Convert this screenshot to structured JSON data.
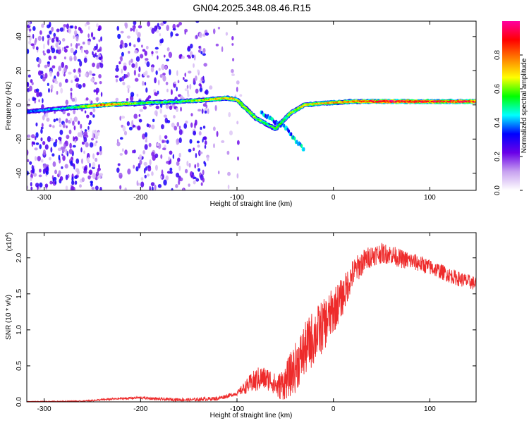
{
  "title": "GN04.2025.348.08.46.R15",
  "chart_data": [
    {
      "type": "heatmap",
      "name": "spectrogram",
      "xlabel": "Height of straight line (km)",
      "ylabel": "Frequency (Hz)",
      "xlim": [
        -318,
        148
      ],
      "ylim": [
        -50,
        49
      ],
      "xticks": [
        -300,
        -200,
        -100,
        0,
        100
      ],
      "xtick_labels": [
        "-300",
        "-200",
        "-100",
        "0",
        "100"
      ],
      "yticks": [
        -40,
        -20,
        0,
        20,
        40
      ],
      "ytick_labels": [
        "-40",
        "-20",
        "0",
        "20",
        "40"
      ],
      "colorbar": {
        "label": "Normalized spectral amplitude",
        "range": [
          0,
          1
        ],
        "ticks": [
          0,
          0.2,
          0.4,
          0.6,
          0.8
        ],
        "tick_labels": [
          "0.0",
          "0.2",
          "0.4",
          "0.6",
          "0.8"
        ],
        "colors": [
          "#ffffff",
          "#c8a2f0",
          "#6a00e8",
          "#0000ff",
          "#00ffff",
          "#00ff00",
          "#ffff00",
          "#ff8000",
          "#ff0000",
          "#ff00a0"
        ]
      },
      "main_track": [
        {
          "x": -318,
          "y": -4,
          "a": 0.4
        },
        {
          "x": -280,
          "y": -2,
          "a": 0.45
        },
        {
          "x": -240,
          "y": 0,
          "a": 0.85
        },
        {
          "x": -200,
          "y": 1,
          "a": 0.6
        },
        {
          "x": -160,
          "y": 2,
          "a": 0.55
        },
        {
          "x": -130,
          "y": 3,
          "a": 0.7
        },
        {
          "x": -110,
          "y": 4,
          "a": 0.75
        },
        {
          "x": -100,
          "y": 3,
          "a": 0.7
        },
        {
          "x": -80,
          "y": -8,
          "a": 0.6
        },
        {
          "x": -60,
          "y": -14,
          "a": 0.55
        },
        {
          "x": -45,
          "y": -5,
          "a": 0.6
        },
        {
          "x": -30,
          "y": 0,
          "a": 0.7
        },
        {
          "x": -10,
          "y": 1,
          "a": 0.75
        },
        {
          "x": 20,
          "y": 2,
          "a": 0.8
        },
        {
          "x": 60,
          "y": 2,
          "a": 0.95
        },
        {
          "x": 90,
          "y": 2,
          "a": 0.9
        },
        {
          "x": 148,
          "y": 2,
          "a": 0.9
        }
      ],
      "secondary_track": [
        {
          "x": -75,
          "y": -5
        },
        {
          "x": -60,
          "y": -10
        },
        {
          "x": -50,
          "y": -13
        },
        {
          "x": -40,
          "y": -20
        },
        {
          "x": -30,
          "y": -27
        }
      ],
      "noise_regions": [
        {
          "x0": -318,
          "x1": -240,
          "density": 1.0
        },
        {
          "x0": -225,
          "x1": -130,
          "density": 0.7
        },
        {
          "x0": -130,
          "x1": -95,
          "density": 0.15
        }
      ]
    },
    {
      "type": "line",
      "name": "snr",
      "xlabel": "Height of straight line (km)",
      "ylabel": "SNR (10 * v/v)",
      "multiplier_label": "(x10",
      "multiplier_exponent": "4",
      "multiplier_close": ")",
      "xlim": [
        -318,
        148
      ],
      "ylim": [
        0,
        2.35
      ],
      "xticks": [
        -300,
        -200,
        -100,
        0,
        100
      ],
      "xtick_labels": [
        "-300",
        "-200",
        "-100",
        "0",
        "100"
      ],
      "yticks": [
        0,
        0.5,
        1.0,
        1.5,
        2.0
      ],
      "ytick_labels": [
        "0.0",
        "0.5",
        "1.0",
        "1.5",
        "2.0"
      ],
      "color": "#ee2b2b",
      "series": [
        {
          "name": "SNR",
          "x": [
            -318,
            -260,
            -230,
            -215,
            -200,
            -180,
            -150,
            -120,
            -100,
            -85,
            -75,
            -65,
            -58,
            -50,
            -40,
            -30,
            -20,
            -10,
            0,
            10,
            20,
            30,
            40,
            50,
            60,
            70,
            80,
            90,
            100,
            110,
            120,
            130,
            148
          ],
          "y": [
            0.005,
            0.01,
            0.04,
            0.05,
            0.06,
            0.04,
            0.03,
            0.05,
            0.12,
            0.28,
            0.35,
            0.32,
            0.22,
            0.3,
            0.5,
            0.75,
            0.95,
            1.1,
            1.3,
            1.5,
            1.8,
            1.95,
            2.05,
            2.08,
            2.06,
            2.0,
            1.97,
            1.93,
            1.88,
            1.83,
            1.77,
            1.72,
            1.65
          ]
        }
      ],
      "noise_amplitude": [
        {
          "x": -318,
          "a": 0.005
        },
        {
          "x": -100,
          "a": 0.06
        },
        {
          "x": -80,
          "a": 0.35
        },
        {
          "x": -60,
          "a": 0.3
        },
        {
          "x": -40,
          "a": 0.7
        },
        {
          "x": -20,
          "a": 0.8
        },
        {
          "x": 0,
          "a": 0.65
        },
        {
          "x": 20,
          "a": 0.4
        },
        {
          "x": 40,
          "a": 0.3
        },
        {
          "x": 100,
          "a": 0.22
        },
        {
          "x": 148,
          "a": 0.2
        }
      ]
    }
  ]
}
